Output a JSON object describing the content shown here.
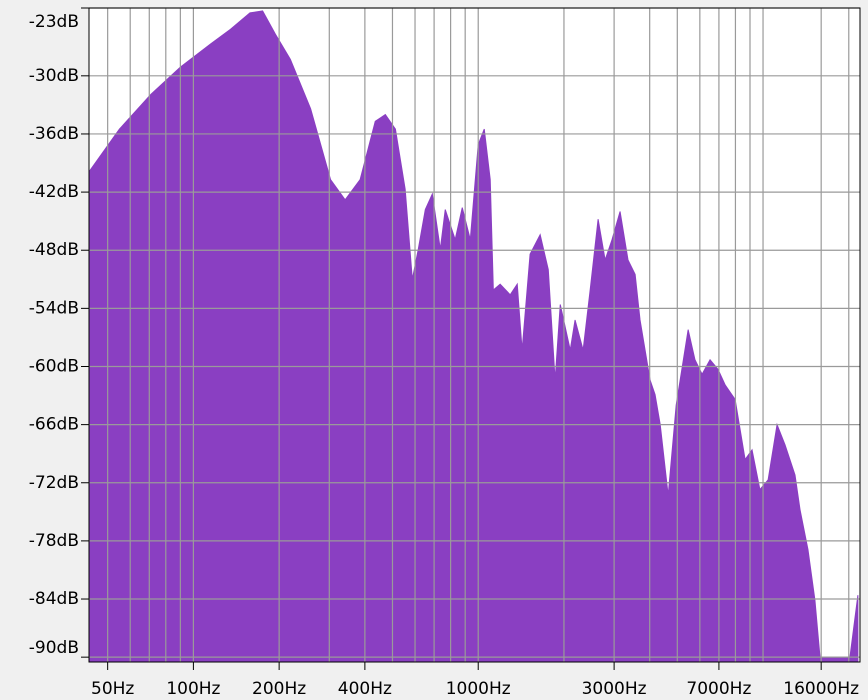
{
  "chart_data": {
    "type": "area",
    "x": [
      43,
      55,
      71,
      90,
      115,
      135,
      158,
      175,
      194,
      219,
      258,
      303,
      341,
      385,
      435,
      472,
      512,
      554,
      587,
      616,
      652,
      690,
      736,
      766,
      830,
      879,
      938,
      1000,
      1050,
      1102,
      1130,
      1194,
      1295,
      1371,
      1426,
      1521,
      1650,
      1762,
      1862,
      1941,
      2104,
      2188,
      2335,
      2472,
      2636,
      2790,
      2951,
      3148,
      3357,
      3556,
      3700,
      4013,
      4178,
      4355,
      4645,
      4955,
      5458,
      5768,
      6109,
      6516,
      6950,
      7362,
      7980,
      8650,
      9150,
      9750,
      10420,
      11200,
      11950,
      12950,
      13490,
      14380,
      15210,
      15850,
      20190,
      21530
    ],
    "values": [
      -39.9,
      -35.5,
      -31.9,
      -29.1,
      -26.7,
      -25.2,
      -23.5,
      -23.3,
      -25.7,
      -28.3,
      -33.4,
      -40.7,
      -42.8,
      -40.7,
      -34.7,
      -34.0,
      -35.5,
      -41.7,
      -51.0,
      -47.9,
      -43.8,
      -42.2,
      -47.9,
      -43.8,
      -46.9,
      -43.6,
      -46.9,
      -37.1,
      -35.5,
      -40.7,
      -52.1,
      -51.5,
      -52.6,
      -51.5,
      -58.3,
      -48.4,
      -46.4,
      -50.0,
      -61.4,
      -53.6,
      -58.3,
      -55.2,
      -58.3,
      -52.1,
      -44.8,
      -49.0,
      -46.9,
      -44.0,
      -49.0,
      -50.5,
      -55.2,
      -61.4,
      -62.9,
      -66.0,
      -73.3,
      -64.0,
      -56.2,
      -59.3,
      -60.8,
      -59.3,
      -60.3,
      -61.9,
      -63.4,
      -69.6,
      -68.6,
      -72.7,
      -71.7,
      -66.0,
      -68.1,
      -71.2,
      -74.8,
      -78.9,
      -84.1,
      -90.0,
      -90.0,
      -83.6
    ],
    "color": "#8a3fc2",
    "xscale": "log",
    "xlim": [
      43,
      21900
    ],
    "ylim": [
      -90.5,
      -23
    ],
    "xticks": [
      {
        "value": 50,
        "label": "50Hz"
      },
      {
        "value": 100,
        "label": "100Hz"
      },
      {
        "value": 200,
        "label": "200Hz"
      },
      {
        "value": 400,
        "label": "400Hz"
      },
      {
        "value": 1000,
        "label": "1000Hz"
      },
      {
        "value": 3000,
        "label": "3000Hz"
      },
      {
        "value": 7000,
        "label": "7000Hz"
      },
      {
        "value": 16000,
        "label": "16000Hz"
      }
    ],
    "xgrid": [
      60,
      70,
      80,
      90,
      300,
      500,
      600,
      700,
      800,
      900,
      2000,
      4000,
      5000,
      6000,
      8000,
      9000,
      10000,
      20000
    ],
    "yticks": [
      {
        "value": -23,
        "label": "-23dB"
      },
      {
        "value": -30,
        "label": "-30dB"
      },
      {
        "value": -36,
        "label": "-36dB"
      },
      {
        "value": -42,
        "label": "-42dB"
      },
      {
        "value": -48,
        "label": "-48dB"
      },
      {
        "value": -54,
        "label": "-54dB"
      },
      {
        "value": -60,
        "label": "-60dB"
      },
      {
        "value": -66,
        "label": "-66dB"
      },
      {
        "value": -72,
        "label": "-72dB"
      },
      {
        "value": -78,
        "label": "-78dB"
      },
      {
        "value": -84,
        "label": "-84dB"
      },
      {
        "value": -90,
        "label": "-90dB"
      }
    ],
    "grid": true
  }
}
